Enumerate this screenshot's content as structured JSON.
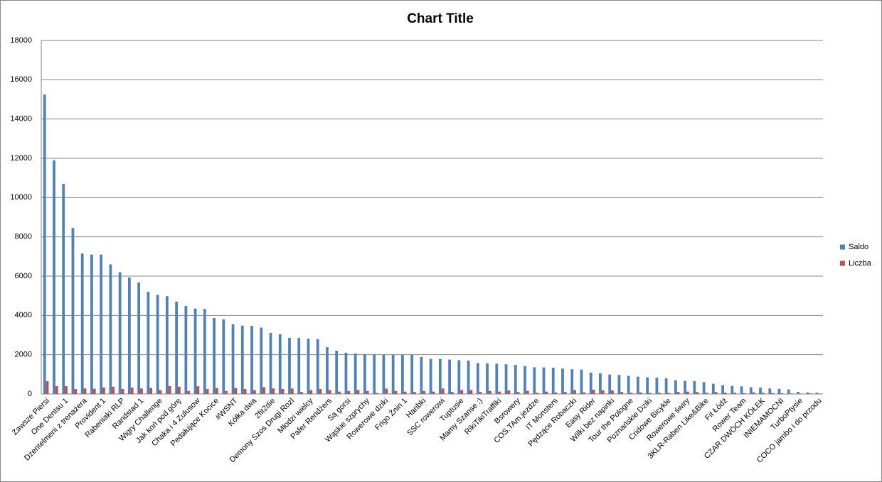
{
  "chart_data": {
    "type": "bar",
    "title": "Chart Title",
    "categories": [
      "Zawsze Piersi",
      null,
      "One Dentsu 1",
      null,
      "Dżentelmeni z trenażera",
      null,
      "Provident 1",
      null,
      "Rabeniaki RLP",
      null,
      "Randstad 1",
      null,
      "Wigry Challenge",
      null,
      "Jak koń pod górę",
      null,
      "Chaka i 4 Zulusow",
      null,
      "Pedałujące Kocice",
      null,
      "#WSNT",
      null,
      "Kółka dwa",
      null,
      "2fit2die",
      null,
      "Demony Szos Drugi Rozl",
      null,
      "Młodzi wielcy",
      null,
      "Pafer Rendżers",
      null,
      "Są gorsi",
      null,
      "Wąskie szprychy",
      null,
      "Rowerowe dziki",
      null,
      "Frigo Żnin 1",
      null,
      "Haribki",
      null,
      "SSC rowerowi",
      null,
      "Tuptusie",
      null,
      "Mamy Szanse :)",
      null,
      "RikiTikiTraffiki",
      null,
      "Bsrowery",
      null,
      "COS.TAm.jezdze",
      null,
      "IT Monsters",
      null,
      "Pędzące Robaczki",
      null,
      "Easy Rider",
      null,
      "Wilki bez napinki",
      null,
      "Tour the Pologne",
      null,
      "Poznańskie Dziki",
      null,
      "Cridowe Bicykle",
      null,
      "Rowerowe świry",
      null,
      "3KLR-Raben Like&Bike",
      null,
      "Fit Łódź",
      null,
      "Rower Team",
      null,
      "CZAR DWÓCH KÓŁEK",
      null,
      "INIEMAMOCNI",
      null,
      "TurboPtysie",
      null,
      "COCO jambo i do przodu"
    ],
    "series": [
      {
        "name": "Saldo",
        "color": "#4f81bd",
        "values": [
          15250,
          11900,
          10700,
          8450,
          7150,
          7100,
          7100,
          6600,
          6200,
          5930,
          5680,
          5200,
          5050,
          4980,
          4700,
          4480,
          4350,
          4330,
          3870,
          3800,
          3550,
          3480,
          3470,
          3380,
          3110,
          3040,
          2860,
          2850,
          2820,
          2800,
          2380,
          2200,
          2100,
          2060,
          2030,
          2020,
          2010,
          2000,
          2000,
          1990,
          1880,
          1790,
          1780,
          1750,
          1720,
          1700,
          1570,
          1560,
          1540,
          1510,
          1480,
          1420,
          1360,
          1350,
          1340,
          1290,
          1260,
          1240,
          1090,
          1050,
          990,
          970,
          920,
          880,
          850,
          830,
          800,
          700,
          670,
          660,
          600,
          520,
          450,
          410,
          390,
          340,
          320,
          280,
          260,
          230,
          110,
          80,
          60
        ]
      },
      {
        "name": "Liczba",
        "color": "#c0504d",
        "values": [
          650,
          400,
          400,
          250,
          280,
          270,
          330,
          370,
          250,
          330,
          280,
          310,
          200,
          400,
          370,
          150,
          390,
          250,
          300,
          150,
          300,
          250,
          200,
          350,
          280,
          250,
          280,
          100,
          200,
          250,
          200,
          120,
          150,
          200,
          150,
          50,
          270,
          150,
          120,
          100,
          150,
          120,
          280,
          100,
          200,
          200,
          100,
          150,
          120,
          180,
          100,
          160,
          60,
          120,
          80,
          100,
          200,
          80,
          220,
          180,
          180,
          100,
          60,
          80,
          50,
          60,
          50,
          100,
          120,
          100,
          60,
          100,
          60,
          60,
          40,
          80,
          60,
          50,
          40,
          30,
          20,
          30,
          20
        ]
      }
    ],
    "ylim": [
      0,
      18000
    ],
    "yticks": [
      0,
      2000,
      4000,
      6000,
      8000,
      10000,
      12000,
      14000,
      16000,
      18000
    ],
    "grid": true,
    "legend": "right"
  }
}
